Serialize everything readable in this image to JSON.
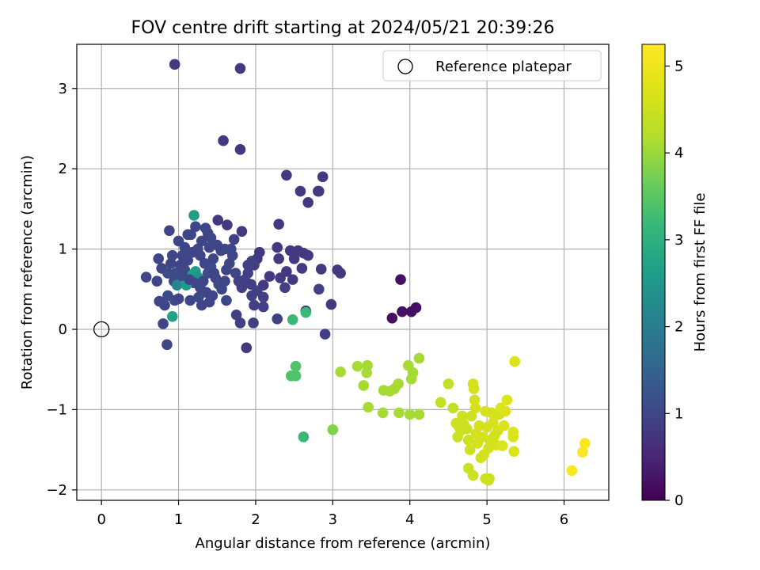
{
  "chart_data": {
    "type": "scatter",
    "title": "FOV centre drift starting at 2024/05/21 20:39:26",
    "xlabel": "Angular distance from reference (arcmin)",
    "ylabel": "Rotation from reference (arcmin)",
    "xlim": [
      -0.32,
      6.58
    ],
    "ylim": [
      -2.13,
      3.55
    ],
    "xticks": [
      0,
      1,
      2,
      3,
      4,
      5,
      6
    ],
    "yticks": [
      -2,
      -1,
      0,
      1,
      2,
      3
    ],
    "grid": true,
    "legend": {
      "position": "upper-right",
      "entries": [
        "Reference platepar"
      ]
    },
    "reference_point": {
      "x": 0,
      "y": 0,
      "label": "Reference platepar"
    },
    "colorbar": {
      "label": "Hours from first FF file",
      "range": [
        0,
        5.25
      ],
      "ticks": [
        0,
        1,
        2,
        3,
        4,
        5
      ],
      "colormap": "viridis"
    },
    "series": [
      {
        "name": "drift",
        "points": [
          [
            0.95,
            3.3,
            0.8
          ],
          [
            1.8,
            3.25,
            0.8
          ],
          [
            1.58,
            2.35,
            0.8
          ],
          [
            1.8,
            2.24,
            0.8
          ],
          [
            2.4,
            1.92,
            0.8
          ],
          [
            2.87,
            1.9,
            0.8
          ],
          [
            2.58,
            1.72,
            0.8
          ],
          [
            2.81,
            1.72,
            0.8
          ],
          [
            2.68,
            1.58,
            0.8
          ],
          [
            2.82,
            1.72,
            0.8
          ],
          [
            2.3,
            1.31,
            0.8
          ],
          [
            1.51,
            1.36,
            0.8
          ],
          [
            1.63,
            1.3,
            0.8
          ],
          [
            1.82,
            1.22,
            0.8
          ],
          [
            0.88,
            1.23,
            1.0
          ],
          [
            1.72,
            1.12,
            0.9
          ],
          [
            1.38,
            1.2,
            0.9
          ],
          [
            1.12,
            1.18,
            1.0
          ],
          [
            2.28,
            1.02,
            0.8
          ],
          [
            2.05,
            0.96,
            0.8
          ],
          [
            2.45,
            0.98,
            0.8
          ],
          [
            2.55,
            0.98,
            0.8
          ],
          [
            2.62,
            0.95,
            0.8
          ],
          [
            2.68,
            0.92,
            0.8
          ],
          [
            2.3,
            0.88,
            0.8
          ],
          [
            2.02,
            0.88,
            0.8
          ],
          [
            1.95,
            0.85,
            0.9
          ],
          [
            1.9,
            0.8,
            0.9
          ],
          [
            2.5,
            0.88,
            0.8
          ],
          [
            2.6,
            0.76,
            0.8
          ],
          [
            2.4,
            0.72,
            0.8
          ],
          [
            2.85,
            0.75,
            0.8
          ],
          [
            3.06,
            0.74,
            0.8
          ],
          [
            3.1,
            0.7,
            0.8
          ],
          [
            2.48,
            0.62,
            0.8
          ],
          [
            2.32,
            0.64,
            0.8
          ],
          [
            2.18,
            0.66,
            0.8
          ],
          [
            2.1,
            0.55,
            0.8
          ],
          [
            2.38,
            0.52,
            0.9
          ],
          [
            2.82,
            0.5,
            0.9
          ],
          [
            2.02,
            0.48,
            0.9
          ],
          [
            1.95,
            0.42,
            0.9
          ],
          [
            2.1,
            0.4,
            0.9
          ],
          [
            1.98,
            0.3,
            0.9
          ],
          [
            2.1,
            0.28,
            0.9
          ],
          [
            2.98,
            0.31,
            0.8
          ],
          [
            2.65,
            0.23,
            0.8
          ],
          [
            1.75,
            0.18,
            0.9
          ],
          [
            2.28,
            0.13,
            0.9
          ],
          [
            1.8,
            0.08,
            0.9
          ],
          [
            1.97,
            0.08,
            0.9
          ],
          [
            2.9,
            -0.06,
            0.9
          ],
          [
            1.88,
            -0.23,
            0.8
          ],
          [
            0.85,
            -0.19,
            1.0
          ],
          [
            0.8,
            0.07,
            1.0
          ],
          [
            0.92,
            0.16,
            2.7
          ],
          [
            0.82,
            0.3,
            1.0
          ],
          [
            0.75,
            0.35,
            1.0
          ],
          [
            0.86,
            0.42,
            1.1
          ],
          [
            0.95,
            0.36,
            1.1
          ],
          [
            1.0,
            0.38,
            1.0
          ],
          [
            1.15,
            0.36,
            1.0
          ],
          [
            1.3,
            0.3,
            1.0
          ],
          [
            1.4,
            0.34,
            1.0
          ],
          [
            1.62,
            0.36,
            1.0
          ],
          [
            0.58,
            0.65,
            1.0
          ],
          [
            0.72,
            0.6,
            1.0
          ],
          [
            0.78,
            0.76,
            1.0
          ],
          [
            0.74,
            0.88,
            1.0
          ],
          [
            0.92,
            0.92,
            1.0
          ],
          [
            0.86,
            0.7,
            1.1
          ],
          [
            0.94,
            0.6,
            1.1
          ],
          [
            0.98,
            0.55,
            2.2
          ],
          [
            1.05,
            0.66,
            1.1
          ],
          [
            1.08,
            0.74,
            1.0
          ],
          [
            1.12,
            0.86,
            1.0
          ],
          [
            1.18,
            0.68,
            2.6
          ],
          [
            1.22,
            0.72,
            2.6
          ],
          [
            1.25,
            0.65,
            2.4
          ],
          [
            1.2,
            0.58,
            1.0
          ],
          [
            1.1,
            0.55,
            2.6
          ],
          [
            1.28,
            0.52,
            1.0
          ],
          [
            1.32,
            0.6,
            1.0
          ],
          [
            1.38,
            0.7,
            1.1
          ],
          [
            1.42,
            0.78,
            1.1
          ],
          [
            1.45,
            0.88,
            1.0
          ],
          [
            1.48,
            0.64,
            1.0
          ],
          [
            1.52,
            0.56,
            1.1
          ],
          [
            1.56,
            0.5,
            1.0
          ],
          [
            1.6,
            0.6,
            1.0
          ],
          [
            1.62,
            0.74,
            1.0
          ],
          [
            1.66,
            0.82,
            1.0
          ],
          [
            1.7,
            0.92,
            1.0
          ],
          [
            1.74,
            0.7,
            1.0
          ],
          [
            1.78,
            0.6,
            0.9
          ],
          [
            1.82,
            0.52,
            0.9
          ],
          [
            1.86,
            0.62,
            0.9
          ],
          [
            1.9,
            0.7,
            0.9
          ],
          [
            1.94,
            0.56,
            0.9
          ],
          [
            1.98,
            0.8,
            0.9
          ],
          [
            1.55,
            0.98,
            1.0
          ],
          [
            1.6,
            1.0,
            1.0
          ],
          [
            1.68,
            1.0,
            1.0
          ],
          [
            1.5,
            1.05,
            1.0
          ],
          [
            1.4,
            1.02,
            1.0
          ],
          [
            1.3,
            1.1,
            1.0
          ],
          [
            1.25,
            1.0,
            1.0
          ],
          [
            1.18,
            0.96,
            1.0
          ],
          [
            1.08,
            1.02,
            1.0
          ],
          [
            1.0,
            1.1,
            1.0
          ],
          [
            1.05,
            0.92,
            1.0
          ],
          [
            1.22,
            1.28,
            1.0
          ],
          [
            1.2,
            1.42,
            2.6
          ],
          [
            1.35,
            1.26,
            1.0
          ],
          [
            1.42,
            1.14,
            1.0
          ],
          [
            1.16,
            1.18,
            1.0
          ],
          [
            1.36,
            0.46,
            1.0
          ],
          [
            1.44,
            0.42,
            1.0
          ],
          [
            1.26,
            0.4,
            1.0
          ],
          [
            1.34,
            0.82,
            1.0
          ],
          [
            1.28,
            0.92,
            1.0
          ],
          [
            1.46,
            0.7,
            1.0
          ],
          [
            1.02,
            0.8,
            1.0
          ],
          [
            0.96,
            0.7,
            1.1
          ],
          [
            0.9,
            0.82,
            1.0
          ],
          [
            1.14,
            0.62,
            1.0
          ],
          [
            2.48,
            0.12,
            3.2
          ],
          [
            2.65,
            0.21,
            3.2
          ],
          [
            3.88,
            0.62,
            0.2
          ],
          [
            3.9,
            0.22,
            0.2
          ],
          [
            4.02,
            0.22,
            0.2
          ],
          [
            4.08,
            0.27,
            0.2
          ],
          [
            3.77,
            0.14,
            0.2
          ],
          [
            2.52,
            -0.46,
            3.4
          ],
          [
            2.46,
            -0.58,
            3.4
          ],
          [
            2.52,
            -0.58,
            3.4
          ],
          [
            2.62,
            -1.34,
            3.2
          ],
          [
            3.0,
            -1.25,
            3.8
          ],
          [
            3.1,
            -0.53,
            4.1
          ],
          [
            3.32,
            -0.46,
            4.1
          ],
          [
            3.45,
            -0.45,
            4.1
          ],
          [
            3.44,
            -0.54,
            4.1
          ],
          [
            3.4,
            -0.7,
            4.1
          ],
          [
            3.46,
            -0.97,
            4.1
          ],
          [
            3.65,
            -1.04,
            4.1
          ],
          [
            3.66,
            -0.76,
            4.1
          ],
          [
            3.74,
            -0.77,
            4.1
          ],
          [
            3.8,
            -0.74,
            4.1
          ],
          [
            3.85,
            -0.68,
            4.1
          ],
          [
            3.86,
            -1.04,
            4.1
          ],
          [
            3.98,
            -0.45,
            4.1
          ],
          [
            4.04,
            -0.54,
            4.1
          ],
          [
            4.02,
            -0.62,
            4.1
          ],
          [
            4.12,
            -0.36,
            4.1
          ],
          [
            4.12,
            -1.06,
            4.1
          ],
          [
            4.0,
            -1.06,
            4.1
          ],
          [
            4.4,
            -0.91,
            4.4
          ],
          [
            4.5,
            -0.68,
            4.4
          ],
          [
            4.56,
            -0.98,
            4.4
          ],
          [
            4.6,
            -1.17,
            4.5
          ],
          [
            4.62,
            -1.34,
            4.5
          ],
          [
            4.66,
            -1.26,
            4.5
          ],
          [
            4.7,
            -1.18,
            4.5
          ],
          [
            4.74,
            -1.24,
            4.5
          ],
          [
            4.76,
            -1.38,
            4.5
          ],
          [
            4.78,
            -1.5,
            4.5
          ],
          [
            4.8,
            -1.08,
            4.5
          ],
          [
            4.82,
            -0.68,
            4.6
          ],
          [
            4.83,
            -0.74,
            4.6
          ],
          [
            4.84,
            -0.88,
            4.6
          ],
          [
            4.85,
            -0.98,
            4.6
          ],
          [
            4.86,
            -1.3,
            4.6
          ],
          [
            4.88,
            -1.42,
            4.6
          ],
          [
            4.9,
            -1.2,
            4.6
          ],
          [
            4.92,
            -1.6,
            4.6
          ],
          [
            4.94,
            -1.34,
            4.6
          ],
          [
            4.96,
            -1.56,
            4.6
          ],
          [
            4.98,
            -1.02,
            4.6
          ],
          [
            5.0,
            -1.22,
            4.6
          ],
          [
            5.02,
            -1.48,
            4.6
          ],
          [
            5.04,
            -1.38,
            4.6
          ],
          [
            5.06,
            -1.04,
            4.6
          ],
          [
            5.08,
            -1.16,
            4.6
          ],
          [
            5.1,
            -1.32,
            4.6
          ],
          [
            5.12,
            -1.44,
            4.6
          ],
          [
            5.14,
            -1.26,
            4.6
          ],
          [
            5.16,
            -1.06,
            4.6
          ],
          [
            5.18,
            -0.98,
            4.7
          ],
          [
            5.2,
            -1.45,
            4.7
          ],
          [
            5.22,
            -1.2,
            4.7
          ],
          [
            5.24,
            -1.02,
            4.7
          ],
          [
            5.26,
            -0.88,
            4.7
          ],
          [
            5.34,
            -1.28,
            4.7
          ],
          [
            5.34,
            -1.34,
            4.7
          ],
          [
            5.35,
            -1.52,
            4.7
          ],
          [
            5.36,
            -0.4,
            4.7
          ],
          [
            4.76,
            -1.73,
            4.5
          ],
          [
            4.82,
            -1.82,
            4.5
          ],
          [
            4.98,
            -1.86,
            4.5
          ],
          [
            5.03,
            -1.86,
            4.5
          ],
          [
            5.02,
            -1.88,
            4.5
          ],
          [
            4.7,
            -1.2,
            4.5
          ],
          [
            4.68,
            -1.08,
            4.5
          ],
          [
            4.64,
            -1.22,
            4.5
          ],
          [
            6.1,
            -1.76,
            5.2
          ],
          [
            6.24,
            -1.53,
            5.2
          ],
          [
            6.27,
            -1.42,
            5.2
          ]
        ]
      }
    ]
  }
}
